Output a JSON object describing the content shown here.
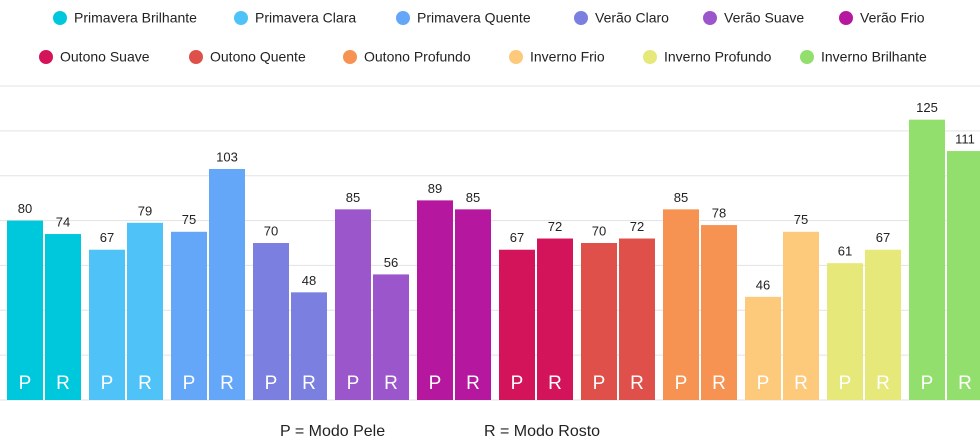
{
  "chart_data": {
    "type": "bar",
    "categories": [
      "Primavera Brilhante",
      "Primavera Clara",
      "Primavera Quente",
      "Verão Claro",
      "Verão Suave",
      "Verão Frio",
      "Outono Suave",
      "Outono Quente",
      "Outono Profundo",
      "Inverno Frio",
      "Inverno Profundo",
      "Inverno Brilhante"
    ],
    "colors": [
      "#00c8dc",
      "#4fc3f7",
      "#64a6f8",
      "#7b7fe0",
      "#9c56cc",
      "#b5179e",
      "#d4145a",
      "#e0504a",
      "#f79352",
      "#fdc97a",
      "#e6e87a",
      "#92df6e"
    ],
    "series": [
      {
        "name": "P",
        "values": [
          80,
          67,
          75,
          70,
          85,
          89,
          67,
          70,
          85,
          46,
          61,
          125
        ]
      },
      {
        "name": "R",
        "values": [
          74,
          79,
          103,
          48,
          56,
          85,
          72,
          72,
          78,
          75,
          67,
          111
        ]
      }
    ],
    "ylim": [
      0,
      140
    ],
    "yticks": [
      0,
      20,
      40,
      60,
      80,
      100,
      120,
      140
    ],
    "grid": true,
    "annotations": [
      "P = Modo Pele",
      "R = Modo Rosto"
    ]
  }
}
